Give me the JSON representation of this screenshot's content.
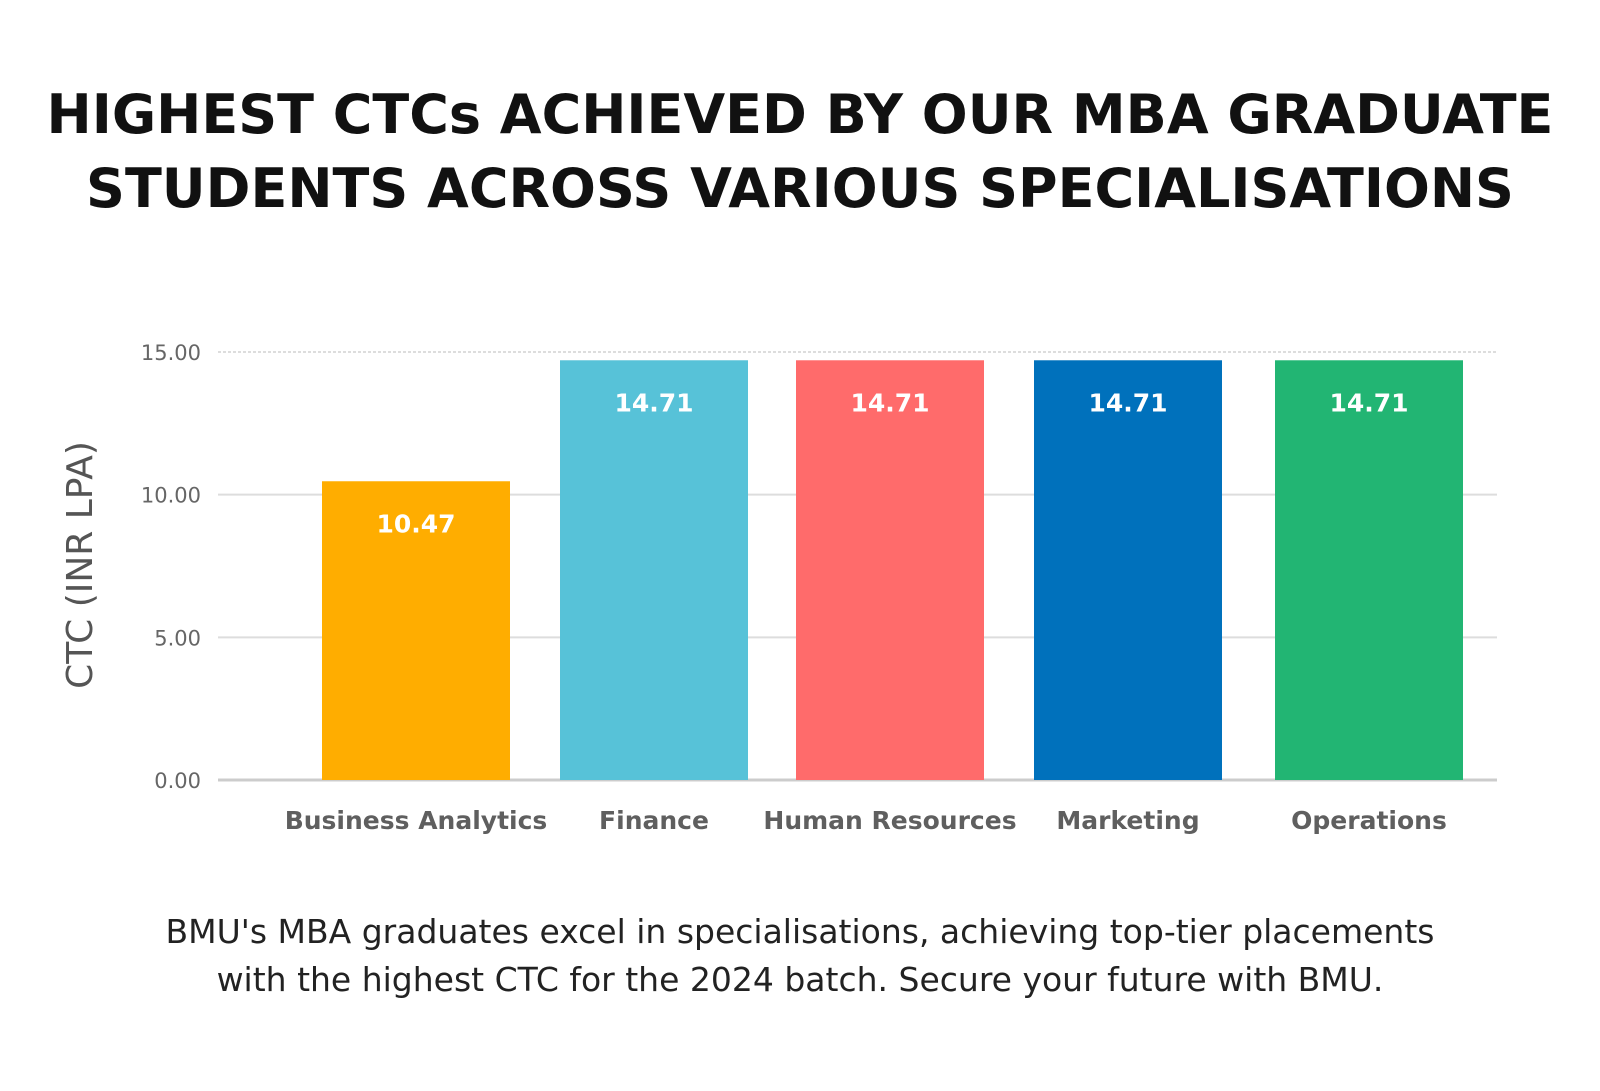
{
  "title": {
    "line1": "HIGHEST CTCs ACHIEVED BY OUR MBA GRADUATE",
    "line2": "STUDENTS ACROSS VARIOUS SPECIALISATIONS"
  },
  "caption": {
    "line1": "BMU's MBA graduates excel in specialisations, achieving top-tier placements",
    "line2": "with the highest CTC for the 2024 batch. Secure your future with BMU."
  },
  "chart_data": {
    "type": "bar",
    "categories": [
      "Business Analytics",
      "Finance",
      "Human Resources",
      "Marketing",
      "Operations"
    ],
    "values": [
      10.47,
      14.71,
      14.71,
      14.71,
      14.71
    ],
    "value_labels": [
      "10.47",
      "14.71",
      "14.71",
      "14.71",
      "14.71"
    ],
    "colors": [
      "#FFAD00",
      "#57C2D8",
      "#FF6B6B",
      "#0071BC",
      "#22B573"
    ],
    "ylabel": "CTC (INR LPA)",
    "xlabel": "",
    "ylim": [
      0,
      15
    ],
    "yticks": [
      0,
      5,
      10,
      15
    ],
    "ytick_labels": [
      "0.00",
      "5.00",
      "10.00",
      "15.00"
    ],
    "grid": true,
    "legend": "none"
  }
}
